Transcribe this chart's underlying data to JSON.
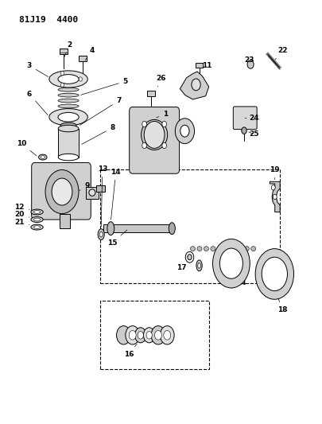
{
  "title": "81J19  4400",
  "bg_color": "#ffffff",
  "line_color": "#000000",
  "fig_width": 4.06,
  "fig_height": 5.33,
  "dpi": 100
}
